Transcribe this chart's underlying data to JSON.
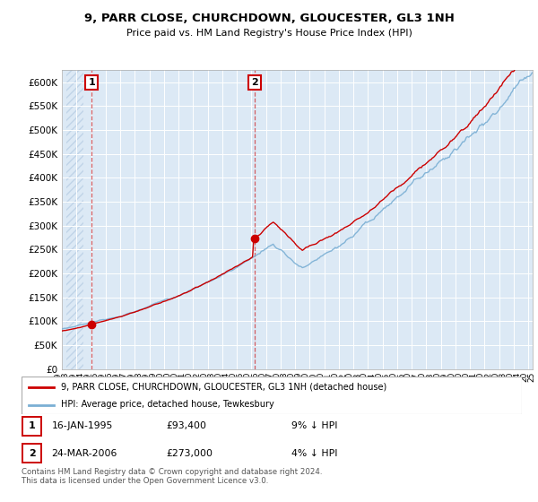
{
  "title": "9, PARR CLOSE, CHURCHDOWN, GLOUCESTER, GL3 1NH",
  "subtitle": "Price paid vs. HM Land Registry's House Price Index (HPI)",
  "ylim": [
    0,
    625000
  ],
  "yticks": [
    0,
    50000,
    100000,
    150000,
    200000,
    250000,
    300000,
    350000,
    400000,
    450000,
    500000,
    550000,
    600000
  ],
  "xlim_start": 1993.3,
  "xlim_end": 2025.3,
  "bg_color": "#dce9f5",
  "hatch_color": "#c0d4e8",
  "grid_color": "#ffffff",
  "red_line_color": "#cc0000",
  "blue_line_color": "#7aafd4",
  "sale1_year": 1995.04,
  "sale1_price": 93400,
  "sale1_label": "1",
  "sale2_year": 2006.23,
  "sale2_price": 273000,
  "sale2_label": "2",
  "legend_red": "9, PARR CLOSE, CHURCHDOWN, GLOUCESTER, GL3 1NH (detached house)",
  "legend_blue": "HPI: Average price, detached house, Tewkesbury",
  "note1_label": "1",
  "note1_date": "16-JAN-1995",
  "note1_price": "£93,400",
  "note1_hpi": "9% ↓ HPI",
  "note2_label": "2",
  "note2_date": "24-MAR-2006",
  "note2_price": "£273,000",
  "note2_hpi": "4% ↓ HPI",
  "footer": "Contains HM Land Registry data © Crown copyright and database right 2024.\nThis data is licensed under the Open Government Licence v3.0."
}
